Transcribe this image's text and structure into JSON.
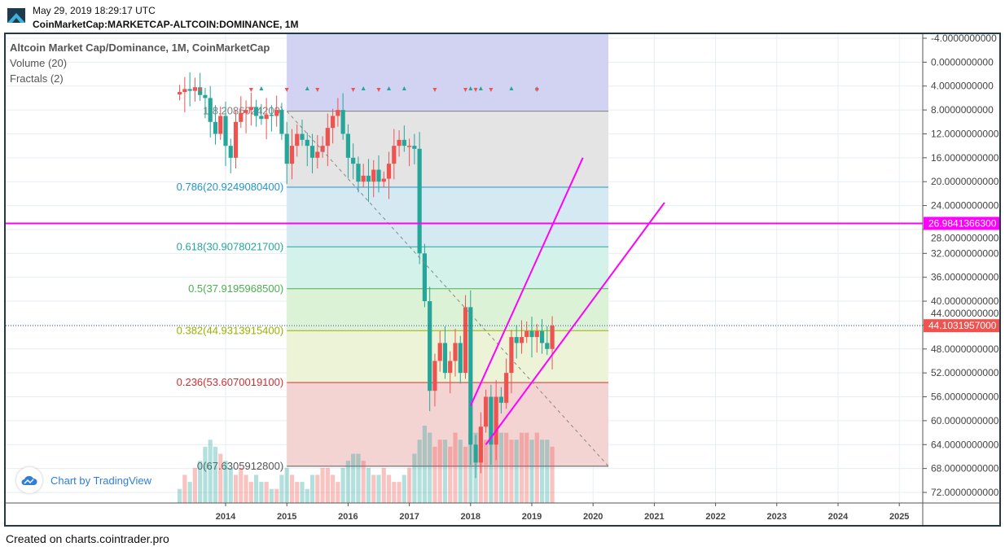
{
  "header": {
    "datetime": "May 29, 2019 18:29:17 UTC",
    "symbol": "CoinMarketCap:MARKETCAP-ALTCOIN:DOMINANCE, 1M"
  },
  "legend": {
    "title": "Altcoin Market Cap/Dominance, 1M, CoinMarketCap",
    "volume": "Volume (20)",
    "fractals": "Fractals (2)"
  },
  "watermark": "Chart by TradingView",
  "footer": "Created on charts.cointrader.pro",
  "colors": {
    "up": "#26a69a",
    "down": "#ef5350",
    "magenta": "#ff00ff",
    "last_price": "#ef5350",
    "frame": "#253846"
  },
  "chart_data": {
    "type": "candlestick",
    "title": "Altcoin Market Cap/Dominance, 1M, CoinMarketCap",
    "y_axis": {
      "inverted": true,
      "range": [
        -4,
        72
      ],
      "ticks": [
        "-4.0000000000",
        "0.0000000000",
        "4.0000000000",
        "8.0000000000",
        "12.0000000000",
        "16.0000000000",
        "20.0000000000",
        "24.0000000000",
        "28.0000000000",
        "32.0000000000",
        "36.0000000000",
        "40.0000000000",
        "44.0000000000",
        "48.0000000000",
        "52.0000000000",
        "56.0000000000",
        "60.0000000000",
        "64.0000000000",
        "68.0000000000",
        "72.0000000000"
      ],
      "tick_values": [
        -4,
        0,
        4,
        8,
        12,
        16,
        20,
        24,
        28,
        32,
        36,
        40,
        44,
        48,
        52,
        56,
        60,
        64,
        68,
        72
      ]
    },
    "x_axis": {
      "ticks": [
        "2014",
        "2015",
        "2016",
        "2017",
        "2018",
        "2019",
        "2020",
        "2021",
        "2022",
        "2023",
        "2024",
        "2025"
      ]
    },
    "start": "2013-04",
    "closes": [
      5,
      4.5,
      4.8,
      4.2,
      5.5,
      6,
      10,
      12,
      9,
      14,
      16,
      10,
      8.5,
      8,
      7.5,
      9,
      9.5,
      8.8,
      9,
      8,
      12,
      17,
      14,
      12,
      13,
      14,
      16,
      15,
      14,
      11,
      9,
      8,
      12,
      16,
      17,
      20,
      19,
      20,
      18,
      20,
      19.5,
      17,
      14,
      13,
      14,
      14,
      14.5,
      32,
      40,
      55,
      50,
      47,
      52,
      50,
      47,
      52,
      41,
      64,
      67,
      61,
      56,
      64,
      56,
      57,
      52,
      46,
      47,
      46,
      45,
      46,
      45,
      47,
      48,
      44.1
    ],
    "volumes": [
      2,
      4,
      3,
      5,
      6,
      8,
      9,
      8,
      7,
      6,
      5,
      4,
      5,
      4,
      3,
      4,
      3,
      3,
      2,
      2,
      4,
      5,
      4,
      3,
      3,
      2,
      4,
      4,
      5,
      5,
      4,
      3,
      5,
      6,
      7,
      7,
      6,
      5,
      4,
      4,
      5,
      4,
      3,
      3,
      4,
      5,
      7,
      9,
      11,
      10,
      8,
      9,
      9,
      8,
      10,
      9,
      8,
      10,
      10,
      9,
      9,
      11,
      9,
      10,
      10,
      9,
      9,
      10,
      10,
      9,
      10,
      9,
      9,
      8
    ],
    "fractals_up": [
      "2014-08",
      "2015-05",
      "2016-04",
      "2016-09",
      "2016-12",
      "2018-01",
      "2018-03",
      "2018-09",
      "2019-02"
    ],
    "fractals_down": [
      "2013-08",
      "2014-06",
      "2015-01",
      "2015-07",
      "2016-02",
      "2016-07",
      "2017-06",
      "2017-12",
      "2018-02",
      "2018-05",
      "2019-02"
    ],
    "fibonacci": {
      "start": "2015-01",
      "end": "2020-04",
      "levels": [
        {
          "ratio": 1,
          "value": 8.20860242,
          "label": "1(8.2086024200)",
          "color": "#808080",
          "fill": "#e4e4e4"
        },
        {
          "ratio": 0.786,
          "value": 20.92490804,
          "label": "0.786(20.9249080400)",
          "color": "#2196c8",
          "fill": "#d5e9f2"
        },
        {
          "ratio": 0.618,
          "value": 30.90780217,
          "label": "0.618(30.9078021700)",
          "color": "#26a69a",
          "fill": "#d2f2ea"
        },
        {
          "ratio": 0.5,
          "value": 37.91959685,
          "label": "0.5(37.9195968500)",
          "color": "#4caf50",
          "fill": "#dcf2d6"
        },
        {
          "ratio": 0.382,
          "value": 44.93139154,
          "label": "0.382(44.9313915400)",
          "color": "#9ab000",
          "fill": "#ecf3d6"
        },
        {
          "ratio": 0.236,
          "value": 53.60700191,
          "label": "0.236(53.6070019100)",
          "color": "#d32f2f",
          "fill": "#f4d3d3"
        },
        {
          "ratio": 0,
          "value": 67.63059128,
          "label": "0(67.6305912800)",
          "color": "#555555",
          "fill": null
        }
      ],
      "top_zone_fill": "#d2d2f3"
    },
    "horizontal_line": {
      "value": 26.98413663,
      "label": "26.9841366300"
    },
    "last_price": {
      "value": 44.1031957,
      "label": "44.1031957000"
    },
    "trendlines": [
      {
        "from": [
          "2018-01",
          57.5
        ],
        "to": [
          "2019-11",
          16
        ]
      },
      {
        "from": [
          "2018-04",
          64
        ],
        "to": [
          "2021-03",
          23.5
        ]
      }
    ],
    "dashed_line": {
      "from": [
        "2015-01",
        8.2
      ],
      "to": [
        "2020-04",
        67.6
      ]
    }
  }
}
